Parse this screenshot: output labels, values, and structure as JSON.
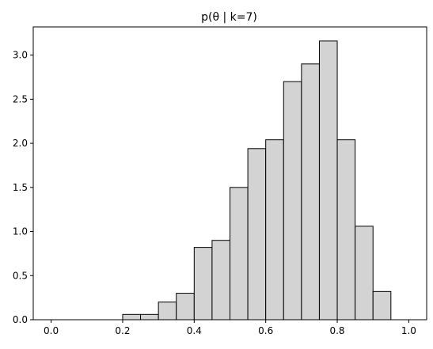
{
  "chart_data": {
    "type": "bar",
    "title": "p(θ | k=7)",
    "xlabel": "",
    "ylabel": "",
    "xlim": [
      -0.05,
      1.05
    ],
    "ylim": [
      0,
      3.32
    ],
    "x_ticks": [
      "0.0",
      "0.2",
      "0.4",
      "0.6",
      "0.8",
      "1.0"
    ],
    "x_tick_values": [
      0.0,
      0.2,
      0.4,
      0.6,
      0.8,
      1.0
    ],
    "y_ticks": [
      "0.0",
      "0.5",
      "1.0",
      "1.5",
      "2.0",
      "2.5",
      "3.0"
    ],
    "y_tick_values": [
      0.0,
      0.5,
      1.0,
      1.5,
      2.0,
      2.5,
      3.0
    ],
    "grid": false,
    "bin_edges": [
      0.0,
      0.05,
      0.1,
      0.15,
      0.2,
      0.25,
      0.3,
      0.35,
      0.4,
      0.45,
      0.5,
      0.55,
      0.6,
      0.65,
      0.7,
      0.75,
      0.8,
      0.85,
      0.9,
      0.95,
      1.0
    ],
    "values": [
      0.0,
      0.0,
      0.0,
      0.0,
      0.06,
      0.06,
      0.2,
      0.3,
      0.82,
      0.9,
      1.5,
      1.94,
      2.04,
      2.7,
      2.9,
      3.16,
      2.04,
      1.06,
      0.32,
      0.0
    ],
    "bar_color": "#d3d3d3",
    "edge_color": "#000000"
  }
}
